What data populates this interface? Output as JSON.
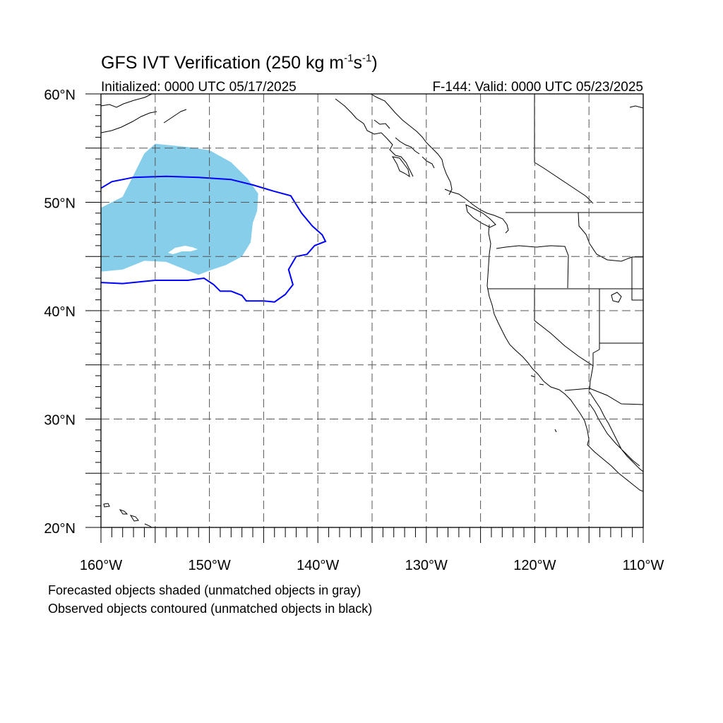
{
  "title": {
    "main": "GFS IVT Verification (250 kg m",
    "exp1": "-1",
    "mid": "s",
    "exp2": "-1",
    "close": ")"
  },
  "initialized_label": "Initialized: 0000 UTC 05/17/2025",
  "valid_label": "F-144: Valid: 0000 UTC 05/23/2025",
  "axes": {
    "lon_range": [
      -160,
      -110
    ],
    "lat_range": [
      20,
      60
    ],
    "x_ticks": [
      {
        "value": -160,
        "label": "160°W"
      },
      {
        "value": -150,
        "label": "150°W"
      },
      {
        "value": -140,
        "label": "140°W"
      },
      {
        "value": -130,
        "label": "130°W"
      },
      {
        "value": -120,
        "label": "120°W"
      },
      {
        "value": -110,
        "label": "110°W"
      }
    ],
    "y_ticks": [
      {
        "value": 60,
        "label": "60°N"
      },
      {
        "value": 50,
        "label": "50°N"
      },
      {
        "value": 40,
        "label": "40°N"
      },
      {
        "value": 30,
        "label": "30°N"
      },
      {
        "value": 20,
        "label": "20°N"
      }
    ],
    "grid": "dashed, every 5 degrees"
  },
  "legend": {
    "line1": "Forecasted objects shaded (unmatched objects in gray)",
    "line2": "Observed objects contoured (unmatched objects in black)"
  },
  "colors": {
    "forecast_fill": "#87ceeb",
    "observed_contour": "#0000ff",
    "coastline": "#000000",
    "grid": "#555555"
  },
  "chart_data": {
    "type": "map",
    "forecast_object_shaded": [
      [
        -160,
        49.5
      ],
      [
        -158,
        50.5
      ],
      [
        -157,
        52.5
      ],
      [
        -156,
        54.5
      ],
      [
        -155,
        55.4
      ],
      [
        -152,
        55.1
      ],
      [
        -150,
        54.8
      ],
      [
        -148,
        53.7
      ],
      [
        -146.5,
        52.2
      ],
      [
        -145.5,
        50.8
      ],
      [
        -145.6,
        49.2
      ],
      [
        -146,
        48.1
      ],
      [
        -146.2,
        46.3
      ],
      [
        -147,
        45.0
      ],
      [
        -148.5,
        44.2
      ],
      [
        -150,
        43.7
      ],
      [
        -151,
        43.3
      ],
      [
        -152,
        43.7
      ],
      [
        -154,
        44.5
      ],
      [
        -156,
        44.6
      ],
      [
        -158,
        43.8
      ],
      [
        -160,
        43.6
      ]
    ],
    "observed_object_contour": [
      [
        -160,
        51.3
      ],
      [
        -159,
        51.9
      ],
      [
        -157,
        52.3
      ],
      [
        -154,
        52.4
      ],
      [
        -151,
        52.3
      ],
      [
        -148,
        52.1
      ],
      [
        -146,
        51.6
      ],
      [
        -144,
        51.0
      ],
      [
        -142.5,
        50.6
      ],
      [
        -142,
        49.8
      ],
      [
        -141.5,
        49.0
      ],
      [
        -140.5,
        47.8
      ],
      [
        -139.6,
        47.0
      ],
      [
        -139.3,
        46.4
      ],
      [
        -140.3,
        46.0
      ],
      [
        -141,
        45.2
      ],
      [
        -142,
        45.0
      ],
      [
        -142.7,
        43.8
      ],
      [
        -142.3,
        42.4
      ],
      [
        -143.0,
        41.5
      ],
      [
        -144.0,
        40.8
      ],
      [
        -145,
        40.9
      ],
      [
        -146.6,
        40.9
      ],
      [
        -147,
        41.4
      ],
      [
        -148.0,
        41.8
      ],
      [
        -149.0,
        41.8
      ],
      [
        -149.6,
        42.4
      ],
      [
        -150.5,
        43.0
      ],
      [
        -152,
        42.8
      ],
      [
        -155,
        42.8
      ],
      [
        -158,
        42.5
      ],
      [
        -160,
        42.6
      ]
    ]
  }
}
